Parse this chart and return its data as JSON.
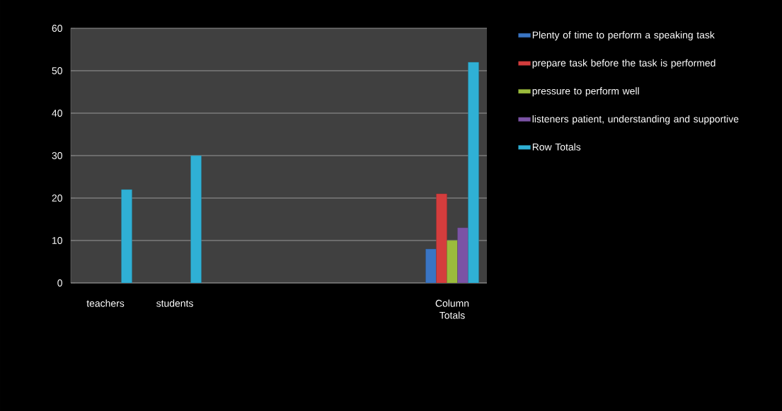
{
  "chart_data": {
    "type": "bar",
    "categories": [
      "teachers",
      "students",
      null,
      null,
      null,
      "Column Totals"
    ],
    "series": [
      {
        "name": "Plenty of time to perform a speaking task",
        "color": "#3a75c4",
        "values": [
          null,
          null,
          null,
          null,
          null,
          8
        ]
      },
      {
        "name": "prepare task before the task is performed",
        "color": "#d43d3d",
        "values": [
          null,
          null,
          null,
          null,
          null,
          21
        ]
      },
      {
        "name": "pressure to perform well",
        "color": "#9bbb3c",
        "values": [
          null,
          null,
          null,
          null,
          null,
          10
        ]
      },
      {
        "name": "listeners patient, understanding and supportive",
        "color": "#7b53a5",
        "values": [
          null,
          null,
          null,
          null,
          null,
          13
        ]
      },
      {
        "name": "Row Totals",
        "color": "#2fb0d5",
        "values": [
          22,
          30,
          null,
          null,
          null,
          52
        ]
      }
    ],
    "ylim": [
      0,
      60
    ],
    "yticks": [
      0,
      10,
      20,
      30,
      40,
      50,
      60
    ],
    "grid": "y",
    "legend": "right"
  }
}
